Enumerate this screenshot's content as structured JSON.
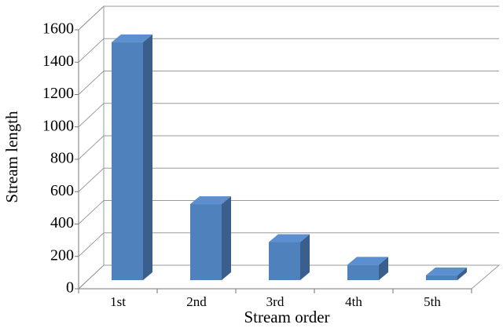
{
  "chart_data": {
    "type": "bar",
    "x_label": "Stream order",
    "y_label": "Stream length",
    "categories": [
      "1st",
      "2nd",
      "3rd",
      "4th",
      "5th"
    ],
    "values": [
      1470,
      470,
      235,
      95,
      30
    ],
    "color": "#4f81bd",
    "ylim": [
      0,
      1600
    ],
    "yticks": [
      0,
      200,
      400,
      600,
      800,
      1000,
      1200,
      1400,
      1600
    ],
    "grid": true
  }
}
